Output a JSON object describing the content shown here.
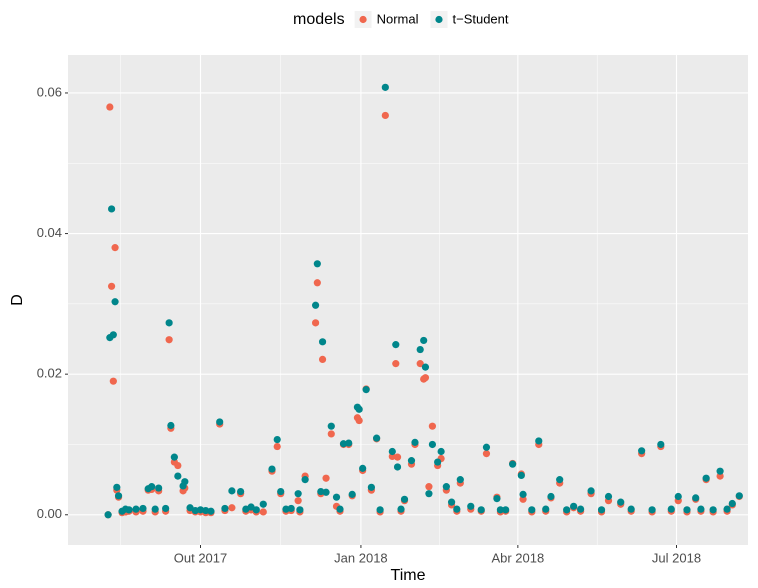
{
  "chart_data": {
    "type": "scatter",
    "legend_title": "models",
    "legend_position": "top",
    "xlabel": "Time",
    "ylabel": "D",
    "x": [
      "2017-08-09",
      "2017-08-10",
      "2017-08-11",
      "2017-08-12",
      "2017-08-13",
      "2017-08-14",
      "2017-08-15",
      "2017-08-17",
      "2017-08-19",
      "2017-08-21",
      "2017-08-25",
      "2017-08-29",
      "2017-09-01",
      "2017-09-03",
      "2017-09-05",
      "2017-09-07",
      "2017-09-11",
      "2017-09-13",
      "2017-09-14",
      "2017-09-16",
      "2017-09-18",
      "2017-09-21",
      "2017-09-22",
      "2017-09-25",
      "2017-09-28",
      "2017-10-01",
      "2017-10-04",
      "2017-10-07",
      "2017-10-12",
      "2017-10-15",
      "2017-10-19",
      "2017-10-24",
      "2017-10-27",
      "2017-10-30",
      "2017-11-02",
      "2017-11-06",
      "2017-11-11",
      "2017-11-14",
      "2017-11-16",
      "2017-11-19",
      "2017-11-22",
      "2017-11-26",
      "2017-11-27",
      "2017-11-30",
      "2017-12-06",
      "2017-12-07",
      "2017-12-09",
      "2017-12-10",
      "2017-12-12",
      "2017-12-15",
      "2017-12-18",
      "2017-12-20",
      "2017-12-22",
      "2017-12-25",
      "2017-12-27",
      "2017-12-30",
      "2017-12-31",
      "2018-01-02",
      "2018-01-04",
      "2018-01-07",
      "2018-01-10",
      "2018-01-12",
      "2018-01-15",
      "2018-01-19",
      "2018-01-21",
      "2018-01-22",
      "2018-01-24",
      "2018-01-26",
      "2018-01-30",
      "2018-02-01",
      "2018-02-04",
      "2018-02-06",
      "2018-02-07",
      "2018-02-09",
      "2018-02-11",
      "2018-02-14",
      "2018-02-16",
      "2018-02-19",
      "2018-02-22",
      "2018-02-25",
      "2018-02-27",
      "2018-03-05",
      "2018-03-11",
      "2018-03-14",
      "2018-03-20",
      "2018-03-22",
      "2018-03-25",
      "2018-03-29",
      "2018-04-03",
      "2018-04-04",
      "2018-04-09",
      "2018-04-13",
      "2018-04-17",
      "2018-04-20",
      "2018-04-25",
      "2018-04-29",
      "2018-05-03",
      "2018-05-07",
      "2018-05-13",
      "2018-05-19",
      "2018-05-23",
      "2018-05-30",
      "2018-06-05",
      "2018-06-11",
      "2018-06-17",
      "2018-06-22",
      "2018-06-28",
      "2018-07-02",
      "2018-07-07",
      "2018-07-12",
      "2018-07-15",
      "2018-07-18",
      "2018-07-22",
      "2018-07-26",
      "2018-07-30",
      "2018-08-02",
      "2018-08-06"
    ],
    "series": [
      {
        "name": "Normal",
        "color": "#F0674E",
        "values": [
          0.0,
          0.058,
          0.0325,
          0.019,
          0.038,
          0.0035,
          0.0025,
          0.0003,
          0.0004,
          0.0005,
          0.0004,
          0.0005,
          0.0035,
          0.0036,
          0.0004,
          0.0034,
          0.0005,
          0.0249,
          0.0123,
          0.0075,
          0.007,
          0.0034,
          0.0038,
          0.0006,
          0.0004,
          0.0004,
          0.0003,
          0.0003,
          0.0129,
          0.0006,
          0.001,
          0.003,
          0.0005,
          0.0007,
          0.0004,
          0.0004,
          0.0062,
          0.0097,
          0.003,
          0.0005,
          0.0006,
          0.002,
          0.0004,
          0.0055,
          0.0273,
          0.033,
          0.003,
          0.0221,
          0.0052,
          0.0115,
          0.0012,
          0.0005,
          0.01,
          0.01,
          0.0027,
          0.0138,
          0.0134,
          0.0063,
          0.0179,
          0.0035,
          0.0108,
          0.0004,
          0.0568,
          0.0083,
          0.0215,
          0.0082,
          0.0005,
          0.002,
          0.0072,
          0.01,
          0.0215,
          0.0193,
          0.0195,
          0.004,
          0.0126,
          0.007,
          0.008,
          0.0035,
          0.0014,
          0.0005,
          0.0045,
          0.0008,
          0.0005,
          0.0087,
          0.0025,
          0.0004,
          0.0005,
          0.0073,
          0.0058,
          0.0022,
          0.0004,
          0.01,
          0.0005,
          0.0024,
          0.0045,
          0.0004,
          0.001,
          0.0005,
          0.003,
          0.0004,
          0.002,
          0.0015,
          0.0005,
          0.0087,
          0.0004,
          0.0097,
          0.0005,
          0.002,
          0.0004,
          0.0022,
          0.0005,
          0.005,
          0.0004,
          0.0055,
          0.0005,
          0.0014,
          0.0026
        ]
      },
      {
        "name": "t−Student",
        "color": "#00868B",
        "values": [
          0.0,
          0.0252,
          0.0435,
          0.0256,
          0.0303,
          0.0039,
          0.0027,
          0.0005,
          0.0008,
          0.0007,
          0.0008,
          0.0009,
          0.0037,
          0.004,
          0.0008,
          0.0038,
          0.0009,
          0.0273,
          0.0127,
          0.0082,
          0.0055,
          0.0041,
          0.0047,
          0.001,
          0.0006,
          0.0007,
          0.0006,
          0.0005,
          0.0132,
          0.0009,
          0.0034,
          0.0033,
          0.0008,
          0.0011,
          0.0007,
          0.0015,
          0.0065,
          0.0107,
          0.0033,
          0.0008,
          0.0009,
          0.003,
          0.0007,
          0.005,
          0.0298,
          0.0357,
          0.0033,
          0.0246,
          0.0032,
          0.0126,
          0.0025,
          0.0008,
          0.0101,
          0.0102,
          0.0029,
          0.0153,
          0.015,
          0.0066,
          0.0178,
          0.0039,
          0.0109,
          0.0007,
          0.0608,
          0.009,
          0.0242,
          0.0068,
          0.0008,
          0.0022,
          0.0077,
          0.0103,
          0.0235,
          0.0248,
          0.021,
          0.003,
          0.01,
          0.0075,
          0.009,
          0.004,
          0.0018,
          0.0008,
          0.005,
          0.0012,
          0.0007,
          0.0096,
          0.0023,
          0.0007,
          0.0007,
          0.0072,
          0.0056,
          0.0029,
          0.0007,
          0.0105,
          0.0008,
          0.0026,
          0.005,
          0.0007,
          0.0012,
          0.0008,
          0.0034,
          0.0007,
          0.0026,
          0.0018,
          0.0008,
          0.0091,
          0.0007,
          0.01,
          0.0008,
          0.0026,
          0.0007,
          0.0024,
          0.0008,
          0.0052,
          0.0007,
          0.0062,
          0.0008,
          0.0016,
          0.0027
        ]
      }
    ],
    "xlim": [
      "2017-07-17",
      "2018-08-11"
    ],
    "xticks": [
      {
        "value": "2017-10-01",
        "label": "Out 2017"
      },
      {
        "value": "2018-01-01",
        "label": "Jan 2018"
      },
      {
        "value": "2018-04-01",
        "label": "Abr 2018"
      },
      {
        "value": "2018-07-01",
        "label": "Jul 2018"
      }
    ],
    "ylim": [
      -0.0043,
      0.0654
    ],
    "yticks": [
      {
        "value": 0,
        "label": "0.00"
      },
      {
        "value": 0.02,
        "label": "0.02"
      },
      {
        "value": 0.04,
        "label": "0.04"
      },
      {
        "value": 0.06,
        "label": "0.06"
      }
    ],
    "grid": true
  }
}
